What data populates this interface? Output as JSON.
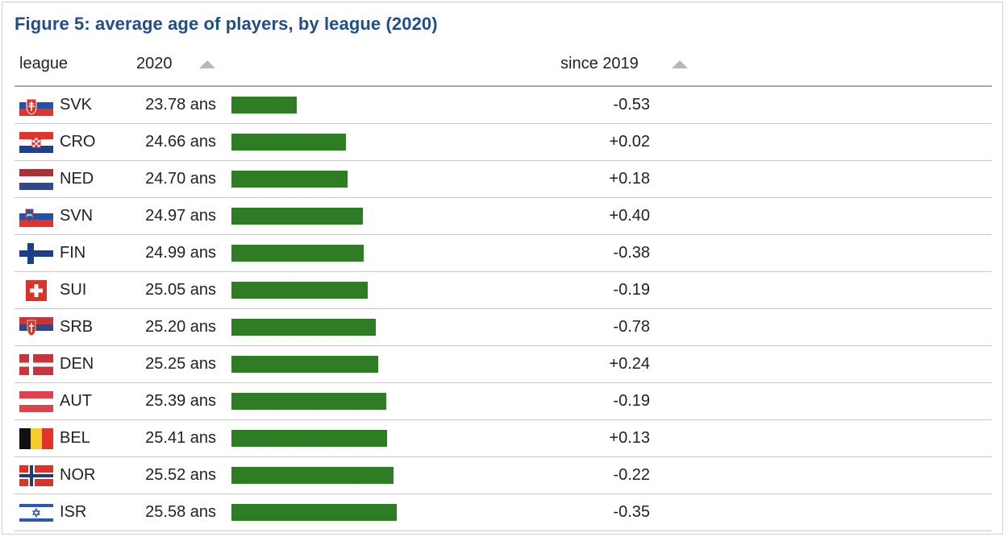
{
  "chart_data": {
    "type": "table",
    "title": "Figure 5: average age of players, by league (2020)",
    "columns": [
      "league",
      "2020",
      "since 2019"
    ],
    "unit": "ans",
    "bar_scale": [
      22.6,
      27.5
    ],
    "colors": {
      "bar": "#2e7d25",
      "title": "#1f4e8c"
    },
    "rows": [
      {
        "league": "SVK",
        "flag": "slovakia-flag-icon",
        "age": 23.78,
        "age_label": "23.78 ans",
        "delta": "-0.53"
      },
      {
        "league": "CRO",
        "flag": "croatia-flag-icon",
        "age": 24.66,
        "age_label": "24.66 ans",
        "delta": "+0.02"
      },
      {
        "league": "NED",
        "flag": "netherlands-flag-icon",
        "age": 24.7,
        "age_label": "24.70 ans",
        "delta": "+0.18"
      },
      {
        "league": "SVN",
        "flag": "slovenia-flag-icon",
        "age": 24.97,
        "age_label": "24.97 ans",
        "delta": "+0.40"
      },
      {
        "league": "FIN",
        "flag": "finland-flag-icon",
        "age": 24.99,
        "age_label": "24.99 ans",
        "delta": "-0.38"
      },
      {
        "league": "SUI",
        "flag": "switzerland-flag-icon",
        "age": 25.05,
        "age_label": "25.05 ans",
        "delta": "-0.19"
      },
      {
        "league": "SRB",
        "flag": "serbia-flag-icon",
        "age": 25.2,
        "age_label": "25.20 ans",
        "delta": "-0.78"
      },
      {
        "league": "DEN",
        "flag": "denmark-flag-icon",
        "age": 25.25,
        "age_label": "25.25 ans",
        "delta": "+0.24"
      },
      {
        "league": "AUT",
        "flag": "austria-flag-icon",
        "age": 25.39,
        "age_label": "25.39 ans",
        "delta": "-0.19"
      },
      {
        "league": "BEL",
        "flag": "belgium-flag-icon",
        "age": 25.41,
        "age_label": "25.41 ans",
        "delta": "+0.13"
      },
      {
        "league": "NOR",
        "flag": "norway-flag-icon",
        "age": 25.52,
        "age_label": "25.52 ans",
        "delta": "-0.22"
      },
      {
        "league": "ISR",
        "flag": "israel-flag-icon",
        "age": 25.58,
        "age_label": "25.58 ans",
        "delta": "-0.35"
      }
    ]
  }
}
